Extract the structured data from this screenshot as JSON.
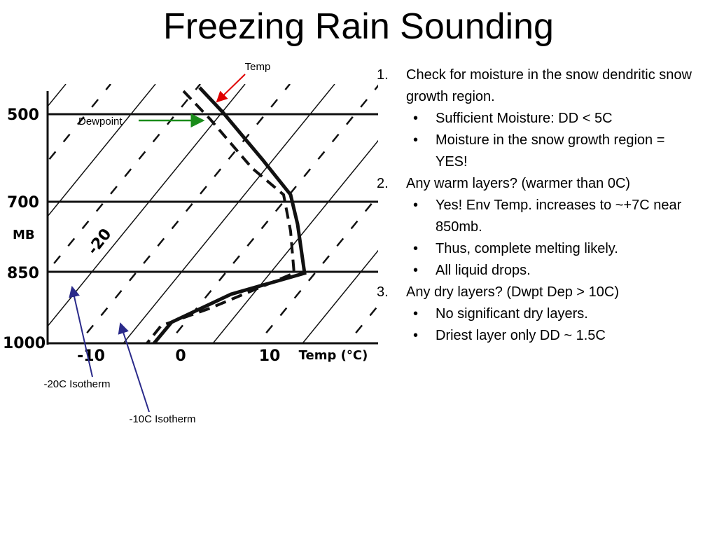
{
  "title": "Freezing Rain Sounding",
  "diagram": {
    "pressure_labels": [
      "500",
      "700",
      "MB",
      "850",
      "1000"
    ],
    "temp_labels": [
      "-10",
      "0",
      "10",
      "Temp (°C)"
    ],
    "isotherm_label": "-20",
    "annotations": {
      "temp": "Temp",
      "dewpoint": "Dewpoint",
      "iso20": "-20C Isotherm",
      "iso10": "-10C Isotherm"
    }
  },
  "list": [
    {
      "number": "1.",
      "text": "Check for moisture in the snow dendritic snow growth region.",
      "bullets": [
        "Sufficient Moisture: DD < 5C",
        "Moisture in the snow growth region = YES!"
      ]
    },
    {
      "number": "2.",
      "text": "Any warm layers? (warmer than 0C)",
      "bullets": [
        "Yes!  Env Temp. increases to ~+7C near 850mb.",
        "Thus, complete melting likely.",
        "All liquid drops."
      ]
    },
    {
      "number": "3.",
      "text": "Any dry layers? (Dwpt Dep > 10C)",
      "bullets": [
        "No significant dry layers.",
        "Driest layer only DD ~ 1.5C"
      ]
    }
  ]
}
